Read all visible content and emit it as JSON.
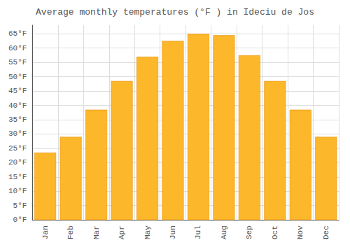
{
  "chart_data": {
    "type": "bar",
    "title": "Average monthly temperatures (°F ) in Ideciu de Jos",
    "categories": [
      "Jan",
      "Feb",
      "Mar",
      "Apr",
      "May",
      "Jun",
      "Jul",
      "Aug",
      "Sep",
      "Oct",
      "Nov",
      "Dec"
    ],
    "values": [
      23.5,
      29.0,
      38.5,
      48.5,
      57.0,
      62.5,
      65.0,
      64.5,
      57.5,
      48.5,
      38.5,
      29.0
    ],
    "color": "#FDB72A",
    "ylim": [
      0,
      68
    ],
    "yticks": [
      {
        "value": 0,
        "label": "0°F"
      },
      {
        "value": 5,
        "label": "5°F"
      },
      {
        "value": 10,
        "label": "10°F"
      },
      {
        "value": 15,
        "label": "15°F"
      },
      {
        "value": 20,
        "label": "20°F"
      },
      {
        "value": 25,
        "label": "25°F"
      },
      {
        "value": 30,
        "label": "30°F"
      },
      {
        "value": 35,
        "label": "35°F"
      },
      {
        "value": 40,
        "label": "40°F"
      },
      {
        "value": 45,
        "label": "45°F"
      },
      {
        "value": 50,
        "label": "50°F"
      },
      {
        "value": 55,
        "label": "55°F"
      },
      {
        "value": 60,
        "label": "60°F"
      },
      {
        "value": 65,
        "label": "65°F"
      }
    ],
    "grid": true
  }
}
